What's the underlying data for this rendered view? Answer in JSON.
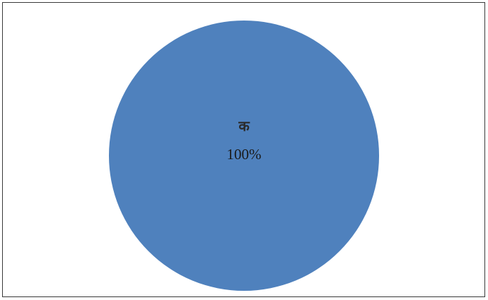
{
  "chart_data": {
    "type": "pie",
    "categories": [
      "क"
    ],
    "values": [
      100
    ],
    "value_labels": [
      "100%"
    ],
    "colors": [
      "#4f81bd"
    ],
    "title": "",
    "legend": "none"
  }
}
